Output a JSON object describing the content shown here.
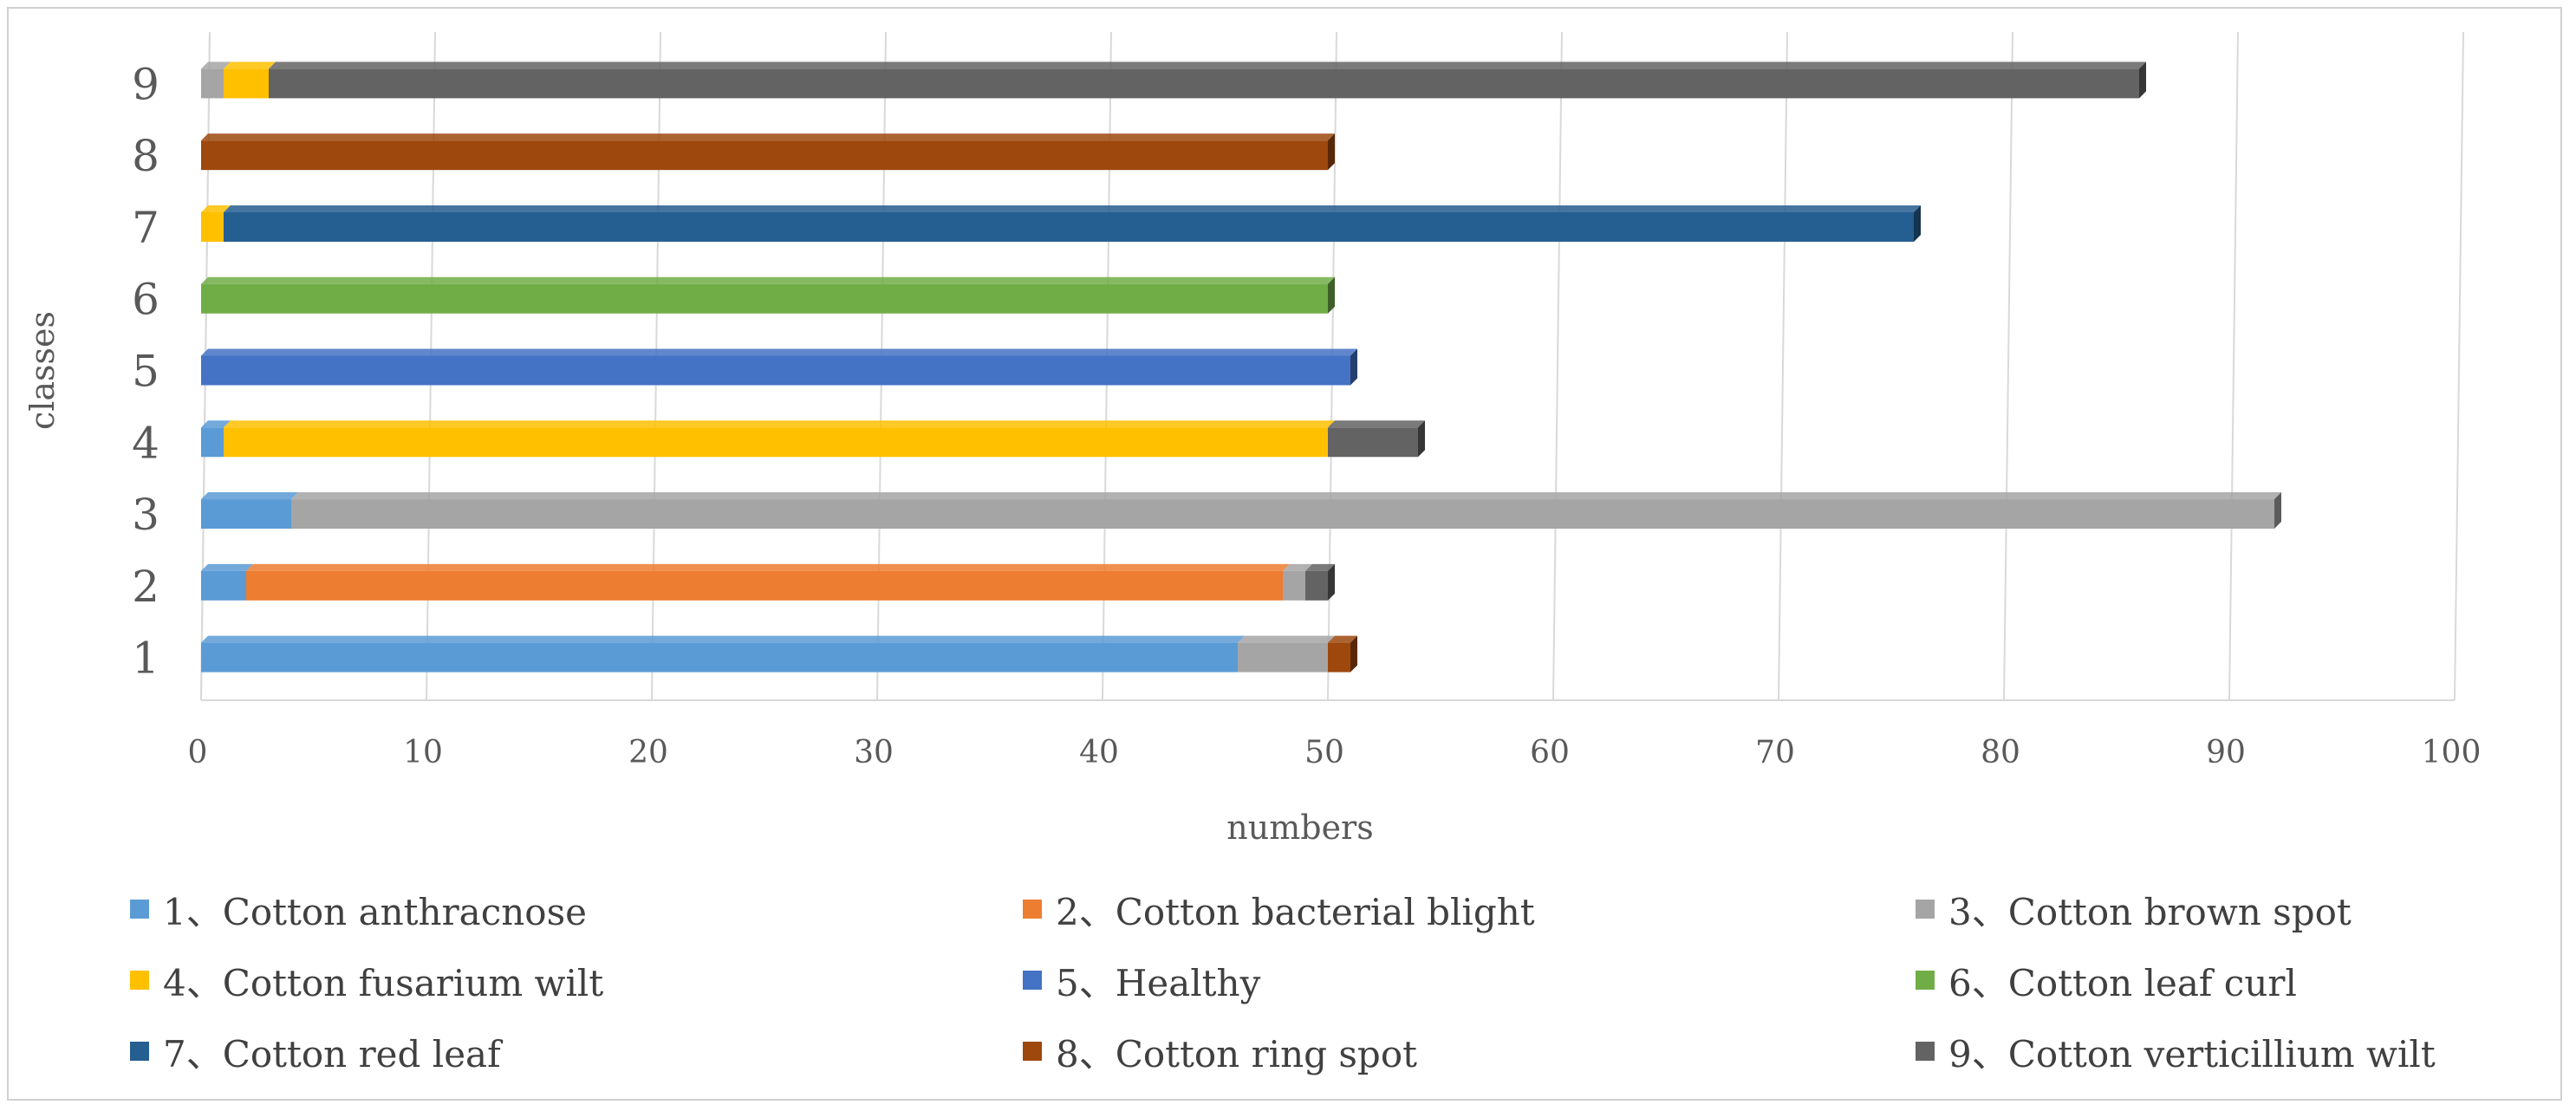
{
  "chart_data": {
    "type": "bar",
    "orientation": "horizontal",
    "stacked": true,
    "xlabel": "numbers",
    "ylabel": "classes",
    "xlim": [
      0,
      100
    ],
    "x_ticks": [
      0,
      10,
      20,
      30,
      40,
      50,
      60,
      70,
      80,
      90,
      100
    ],
    "categories": [
      "1",
      "2",
      "3",
      "4",
      "5",
      "6",
      "7",
      "8",
      "9"
    ],
    "grid": "vertical",
    "legend_position": "bottom",
    "series": [
      {
        "name": "1、Cotton anthracnose",
        "color": "#5b9bd5",
        "values": [
          46,
          2,
          4,
          1,
          0,
          0,
          0,
          0,
          0
        ]
      },
      {
        "name": "2、Cotton bacterial blight",
        "color": "#ed7d31",
        "values": [
          0,
          46,
          0,
          0,
          0,
          0,
          0,
          0,
          0
        ]
      },
      {
        "name": "3、Cotton brown spot",
        "color": "#a5a5a5",
        "values": [
          4,
          1,
          88,
          0,
          0,
          0,
          0,
          0,
          1
        ]
      },
      {
        "name": "4、Cotton fusarium wilt",
        "color": "#ffc000",
        "values": [
          0,
          0,
          0,
          49,
          0,
          0,
          1,
          0,
          2
        ]
      },
      {
        "name": "5、Healthy",
        "color": "#4472c4",
        "values": [
          0,
          0,
          0,
          0,
          51,
          0,
          0,
          0,
          0
        ]
      },
      {
        "name": "6、Cotton leaf curl",
        "color": "#70ad47",
        "values": [
          0,
          0,
          0,
          0,
          0,
          50,
          0,
          0,
          0
        ]
      },
      {
        "name": "7、Cotton red leaf",
        "color": "#255e91",
        "values": [
          0,
          0,
          0,
          0,
          0,
          0,
          75,
          0,
          0
        ]
      },
      {
        "name": "8、Cotton ring spot",
        "color": "#9e480e",
        "values": [
          1,
          0,
          0,
          0,
          0,
          0,
          0,
          50,
          0
        ]
      },
      {
        "name": "9、Cotton verticillium wilt",
        "color": "#636363",
        "values": [
          0,
          1,
          0,
          4,
          0,
          0,
          0,
          0,
          83
        ]
      }
    ]
  }
}
